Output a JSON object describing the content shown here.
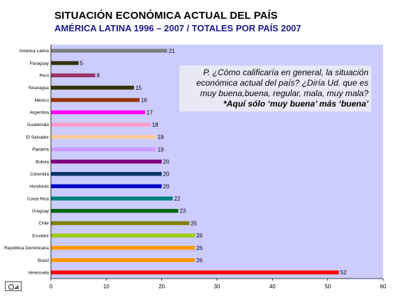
{
  "header": {
    "title": "SITUACIÓN ECONÓMICA ACTUAL DEL PAÍS",
    "subtitle": "AMÉRICA LATINA 1996 – 2007 / TOTALES POR PAÍS 2007"
  },
  "note": {
    "question": "P. ¿Cómo calificaría en general, la situación económica actual del país? ¿Diría Ud. que es muy buena,buena, regular, mala, muy mala?",
    "emphasis": "*Aquí sólo ‘muy buena’ más ‘buena’"
  },
  "chart_data": {
    "type": "bar",
    "orientation": "horizontal",
    "title": "SITUACIÓN ECONÓMICA ACTUAL DEL PAÍS",
    "subtitle": "AMÉRICA LATINA 1996 – 2007 / TOTALES POR PAÍS 2007",
    "xlabel": "",
    "ylabel": "",
    "xlim": [
      0,
      60
    ],
    "xticks": [
      0,
      10,
      20,
      30,
      40,
      50,
      60
    ],
    "grid": false,
    "categories": [
      "América Latina",
      "Paraguay",
      "Perú",
      "Nicaragua",
      "México",
      "Argentina",
      "Guatemala",
      "El Salvador",
      "Panamá",
      "Bolivia",
      "Colombia",
      "Honduras",
      "Costa Rica",
      "Uruguay",
      "Chile",
      "Ecuador",
      "República Dominicana",
      "Brasil",
      "Venezuela"
    ],
    "values": [
      21,
      5,
      8,
      15,
      16,
      17,
      18,
      19,
      19,
      20,
      20,
      20,
      22,
      23,
      25,
      26,
      26,
      26,
      52
    ],
    "colors": [
      "#808080",
      "#333300",
      "#993366",
      "#333300",
      "#993300",
      "#ff00ff",
      "#ff99cc",
      "#ffcc99",
      "#cc99ff",
      "#800080",
      "#003366",
      "#0000cc",
      "#008080",
      "#006600",
      "#808000",
      "#99cc00",
      "#ff9900",
      "#ff9900",
      "#ff0000"
    ]
  },
  "colors": {
    "plot_background": "#ccccff",
    "note_background": "#e9e9f6",
    "subtitle": "#1a1a8c"
  },
  "logo": {
    "icon": "logo-icon"
  }
}
